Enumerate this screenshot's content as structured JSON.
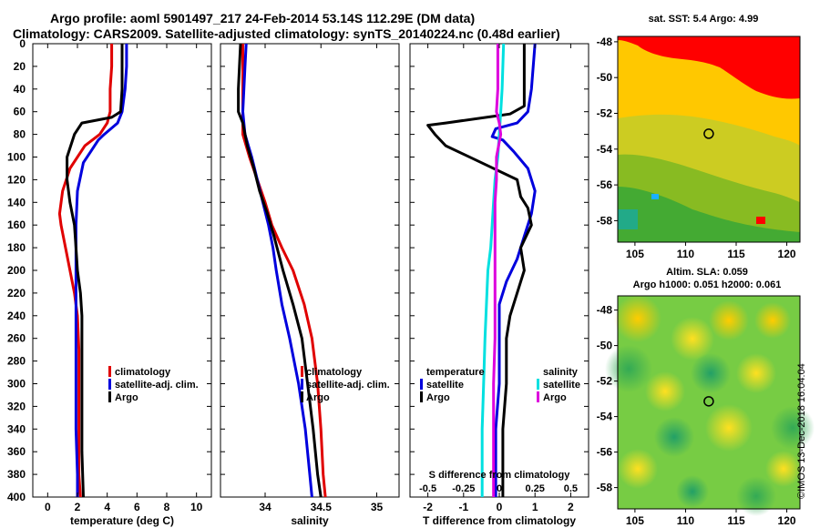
{
  "titles": {
    "line1": "Argo profile: aoml 5901497_217 24-Feb-2014 53.14S 112.29E (DM data)",
    "line2": "Climatology: CARS2009. Satellite-adjusted climatology: synTS_20140224.nc (0.48d earlier)"
  },
  "credit": "©IMOS 13-Dec-2018 16:04:04",
  "colors": {
    "climatology": "#e00000",
    "satellite_adj": "#0000dd",
    "argo": "#000000",
    "t_satellite": "#0000dd",
    "s_satellite": "#00e0e0",
    "s_argo": "#dd00dd"
  },
  "depth_ticks": [
    "0",
    "20",
    "40",
    "60",
    "80",
    "100",
    "120",
    "140",
    "160",
    "180",
    "200",
    "220",
    "240",
    "260",
    "280",
    "300",
    "320",
    "340",
    "360",
    "380",
    "400"
  ],
  "chart_data": [
    {
      "type": "line",
      "name": "temperature-profile",
      "xlabel": "temperature (deg C)",
      "x_ticks": [
        "0",
        "2",
        "4",
        "6",
        "8",
        "10"
      ],
      "xlim": [
        -1,
        11
      ],
      "ylim": [
        400,
        0
      ],
      "legend": [
        "climatology",
        "satellite-adj. clim.",
        "Argo"
      ],
      "series": [
        {
          "name": "climatology",
          "color": "#e00000",
          "points": [
            [
              4.3,
              0
            ],
            [
              4.3,
              20
            ],
            [
              4.2,
              40
            ],
            [
              4.2,
              60
            ],
            [
              4.0,
              70
            ],
            [
              3.5,
              80
            ],
            [
              2.5,
              90
            ],
            [
              1.5,
              110
            ],
            [
              1.0,
              130
            ],
            [
              0.8,
              150
            ],
            [
              0.9,
              160
            ],
            [
              1.2,
              180
            ],
            [
              1.5,
              200
            ],
            [
              1.8,
              220
            ],
            [
              2.0,
              240
            ],
            [
              2.1,
              270
            ],
            [
              2.1,
              300
            ],
            [
              2.1,
              340
            ],
            [
              2.1,
              380
            ],
            [
              2.2,
              400
            ]
          ]
        },
        {
          "name": "satellite-adj. clim.",
          "color": "#0000dd",
          "points": [
            [
              5.3,
              0
            ],
            [
              5.3,
              20
            ],
            [
              5.2,
              40
            ],
            [
              5.0,
              60
            ],
            [
              4.7,
              70
            ],
            [
              3.8,
              80
            ],
            [
              3.4,
              85
            ],
            [
              2.9,
              95
            ],
            [
              2.4,
              105
            ],
            [
              2.0,
              130
            ],
            [
              1.9,
              160
            ],
            [
              1.9,
              200
            ],
            [
              1.9,
              240
            ],
            [
              1.9,
              280
            ],
            [
              1.9,
              340
            ],
            [
              2.0,
              380
            ],
            [
              2.0,
              400
            ]
          ]
        },
        {
          "name": "Argo",
          "color": "#000000",
          "points": [
            [
              5.0,
              0
            ],
            [
              5.0,
              20
            ],
            [
              5.0,
              40
            ],
            [
              4.9,
              60
            ],
            [
              4.3,
              65
            ],
            [
              2.3,
              70
            ],
            [
              1.8,
              80
            ],
            [
              1.3,
              100
            ],
            [
              1.3,
              120
            ],
            [
              1.5,
              140
            ],
            [
              1.8,
              160
            ],
            [
              1.9,
              180
            ],
            [
              2.0,
              200
            ],
            [
              2.2,
              220
            ],
            [
              2.3,
              240
            ],
            [
              2.3,
              280
            ],
            [
              2.3,
              320
            ],
            [
              2.3,
              360
            ],
            [
              2.4,
              400
            ]
          ]
        }
      ]
    },
    {
      "type": "line",
      "name": "salinity-profile",
      "xlabel": "salinity",
      "x_ticks": [
        "34",
        "34.5",
        "35"
      ],
      "xlim": [
        33.6,
        35.2
      ],
      "ylim": [
        400,
        0
      ],
      "legend": [
        "climatology",
        "satellite-adj. clim.",
        "Argo"
      ],
      "series": [
        {
          "name": "climatology",
          "color": "#e00000",
          "points": [
            [
              33.8,
              0
            ],
            [
              33.8,
              20
            ],
            [
              33.8,
              40
            ],
            [
              33.8,
              60
            ],
            [
              33.8,
              80
            ],
            [
              33.86,
              100
            ],
            [
              33.93,
              120
            ],
            [
              34.0,
              140
            ],
            [
              34.06,
              160
            ],
            [
              34.15,
              180
            ],
            [
              34.25,
              200
            ],
            [
              34.35,
              230
            ],
            [
              34.42,
              260
            ],
            [
              34.47,
              300
            ],
            [
              34.5,
              340
            ],
            [
              34.52,
              380
            ],
            [
              34.54,
              400
            ]
          ]
        },
        {
          "name": "satellite-adj. clim.",
          "color": "#0000dd",
          "points": [
            [
              33.83,
              0
            ],
            [
              33.82,
              20
            ],
            [
              33.81,
              40
            ],
            [
              33.8,
              60
            ],
            [
              33.82,
              80
            ],
            [
              33.88,
              100
            ],
            [
              33.93,
              120
            ],
            [
              33.98,
              140
            ],
            [
              34.03,
              160
            ],
            [
              34.07,
              180
            ],
            [
              34.1,
              200
            ],
            [
              34.15,
              230
            ],
            [
              34.22,
              260
            ],
            [
              34.3,
              300
            ],
            [
              34.36,
              340
            ],
            [
              34.4,
              380
            ],
            [
              34.42,
              400
            ]
          ]
        },
        {
          "name": "Argo",
          "color": "#000000",
          "points": [
            [
              33.78,
              0
            ],
            [
              33.77,
              20
            ],
            [
              33.76,
              40
            ],
            [
              33.76,
              60
            ],
            [
              33.8,
              70
            ],
            [
              33.84,
              90
            ],
            [
              33.9,
              110
            ],
            [
              33.95,
              130
            ],
            [
              34.02,
              150
            ],
            [
              34.08,
              170
            ],
            [
              34.16,
              200
            ],
            [
              34.25,
              230
            ],
            [
              34.33,
              260
            ],
            [
              34.38,
              300
            ],
            [
              34.43,
              340
            ],
            [
              34.47,
              380
            ],
            [
              34.5,
              400
            ]
          ]
        }
      ]
    },
    {
      "type": "line",
      "name": "difference-profile",
      "xlabel": "T difference from climatology",
      "x2label": "S difference from climatology",
      "x_ticks": [
        "-2",
        "-1",
        "0",
        "1",
        "2"
      ],
      "x2_ticks": [
        "-0.5",
        "-0.25",
        "0",
        "0.25",
        "0.5"
      ],
      "xlim": [
        -2.5,
        2.5
      ],
      "x2lim": [
        -0.625,
        0.625
      ],
      "ylim": [
        400,
        0
      ],
      "legend_temperature": {
        "heading": "temperature",
        "items": [
          "satellite",
          "Argo"
        ]
      },
      "legend_salinity": {
        "heading": "salinity",
        "items": [
          "satellite",
          "Argo"
        ]
      },
      "series": [
        {
          "name": "temperature satellite",
          "color": "#0000dd",
          "axis": "T",
          "points": [
            [
              1.0,
              0
            ],
            [
              0.9,
              40
            ],
            [
              0.8,
              60
            ],
            [
              0.5,
              70
            ],
            [
              -0.1,
              75
            ],
            [
              -0.2,
              82
            ],
            [
              0.1,
              85
            ],
            [
              0.4,
              95
            ],
            [
              0.8,
              110
            ],
            [
              1.0,
              130
            ],
            [
              0.9,
              150
            ],
            [
              0.7,
              170
            ],
            [
              0.5,
              190
            ],
            [
              0.2,
              210
            ],
            [
              0.0,
              230
            ],
            [
              0.0,
              300
            ],
            [
              -0.1,
              340
            ],
            [
              -0.1,
              400
            ]
          ]
        },
        {
          "name": "temperature Argo",
          "color": "#000000",
          "axis": "T",
          "points": [
            [
              0.7,
              0
            ],
            [
              0.7,
              40
            ],
            [
              0.7,
              55
            ],
            [
              0.3,
              62
            ],
            [
              -1.5,
              70
            ],
            [
              -2.0,
              72
            ],
            [
              -1.8,
              80
            ],
            [
              -1.5,
              90
            ],
            [
              -0.5,
              105
            ],
            [
              0.5,
              120
            ],
            [
              0.6,
              135
            ],
            [
              0.8,
              145
            ],
            [
              0.9,
              160
            ],
            [
              0.6,
              180
            ],
            [
              0.7,
              200
            ],
            [
              0.6,
              210
            ],
            [
              0.3,
              240
            ],
            [
              0.2,
              260
            ],
            [
              0.2,
              300
            ],
            [
              0.1,
              340
            ],
            [
              0.1,
              400
            ]
          ]
        },
        {
          "name": "salinity satellite",
          "color": "#00e0e0",
          "axis": "S",
          "points": [
            [
              0.03,
              0
            ],
            [
              0.02,
              40
            ],
            [
              0.01,
              60
            ],
            [
              0.0,
              80
            ],
            [
              -0.01,
              100
            ],
            [
              -0.03,
              120
            ],
            [
              -0.04,
              140
            ],
            [
              -0.05,
              160
            ],
            [
              -0.06,
              180
            ],
            [
              -0.08,
              200
            ],
            [
              -0.09,
              230
            ],
            [
              -0.1,
              260
            ],
            [
              -0.11,
              300
            ],
            [
              -0.12,
              340
            ],
            [
              -0.12,
              380
            ],
            [
              -0.12,
              400
            ]
          ]
        },
        {
          "name": "salinity Argo",
          "color": "#dd00dd",
          "axis": "S",
          "points": [
            [
              -0.01,
              0
            ],
            [
              -0.01,
              40
            ],
            [
              -0.02,
              60
            ],
            [
              0.0,
              70
            ],
            [
              0.01,
              80
            ],
            [
              -0.02,
              100
            ],
            [
              -0.02,
              120
            ],
            [
              -0.03,
              140
            ],
            [
              -0.03,
              200
            ],
            [
              -0.03,
              260
            ],
            [
              -0.04,
              300
            ],
            [
              -0.04,
              340
            ],
            [
              -0.04,
              400
            ]
          ]
        }
      ]
    },
    {
      "type": "heatmap",
      "name": "sst-map",
      "title": "sat. SST: 5.4 Argo: 4.99",
      "x_ticks": [
        "105",
        "110",
        "115",
        "120"
      ],
      "y_ticks": [
        "-48",
        "-50",
        "-52",
        "-54",
        "-56",
        "-58"
      ],
      "xlim": [
        103.3,
        121.3
      ],
      "ylim": [
        -59.2,
        -47.7
      ],
      "marker": {
        "lon": 112.29,
        "lat": -53.14
      }
    },
    {
      "type": "heatmap",
      "name": "sla-map",
      "title_line1": "Altim. SLA: 0.059",
      "title_line2": "Argo h1000: 0.051 h2000: 0.061",
      "x_ticks": [
        "105",
        "110",
        "115",
        "120"
      ],
      "y_ticks": [
        "-48",
        "-50",
        "-52",
        "-54",
        "-56",
        "-58"
      ],
      "xlim": [
        103.3,
        121.3
      ],
      "ylim": [
        -59.2,
        -47.2
      ],
      "marker": {
        "lon": 112.29,
        "lat": -53.14
      }
    }
  ]
}
